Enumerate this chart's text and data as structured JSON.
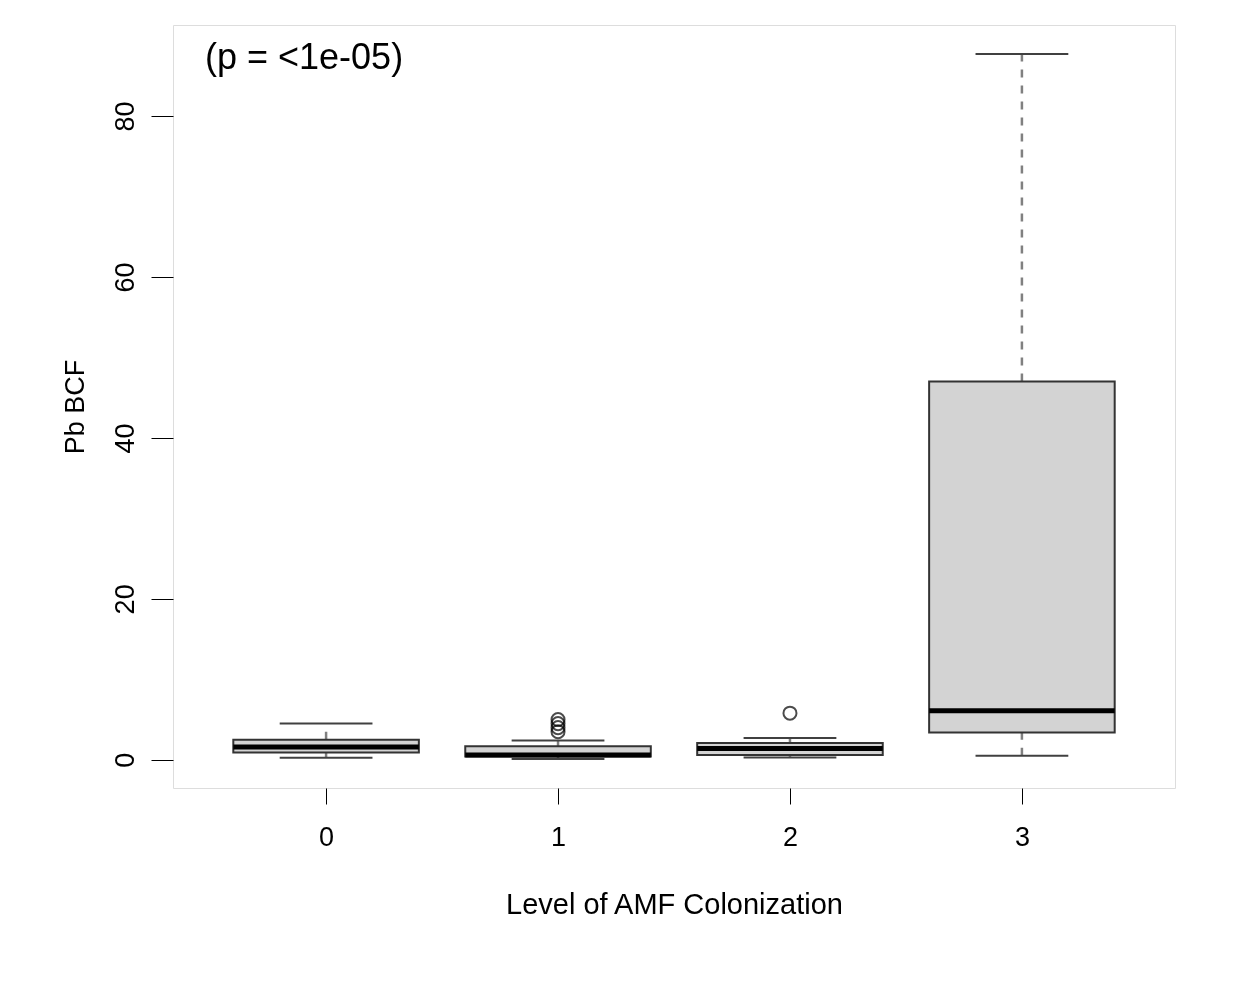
{
  "chart_data": {
    "type": "box",
    "xlabel": "Level of AMF Colonization",
    "ylabel": "Pb BCF",
    "categories": [
      "0",
      "1",
      "2",
      "3"
    ],
    "color": "#d3d3d3",
    "line_style": "dashed",
    "grid": false,
    "legend": false,
    "ylim": [
      -3.5,
      91.3
    ],
    "yticks": [
      0,
      20,
      40,
      60,
      80
    ],
    "annotations": [
      "(p = <1e-05)"
    ],
    "boxes": [
      {
        "low": 0.25,
        "q1": 0.9,
        "median": 1.6,
        "q3": 2.5,
        "high": 4.5
      },
      {
        "low": 0.1,
        "q1": 0.4,
        "median": 0.6,
        "q3": 1.7,
        "high": 2.4,
        "outliers": [
          3.5,
          4.0,
          4.5,
          5.0
        ]
      },
      {
        "low": 0.3,
        "q1": 0.6,
        "median": 1.4,
        "q3": 2.1,
        "high": 2.7,
        "outliers": [
          5.8
        ]
      },
      {
        "low": 0.5,
        "q1": 3.4,
        "median": 6.1,
        "q3": 47.0,
        "high": 87.7
      }
    ]
  }
}
